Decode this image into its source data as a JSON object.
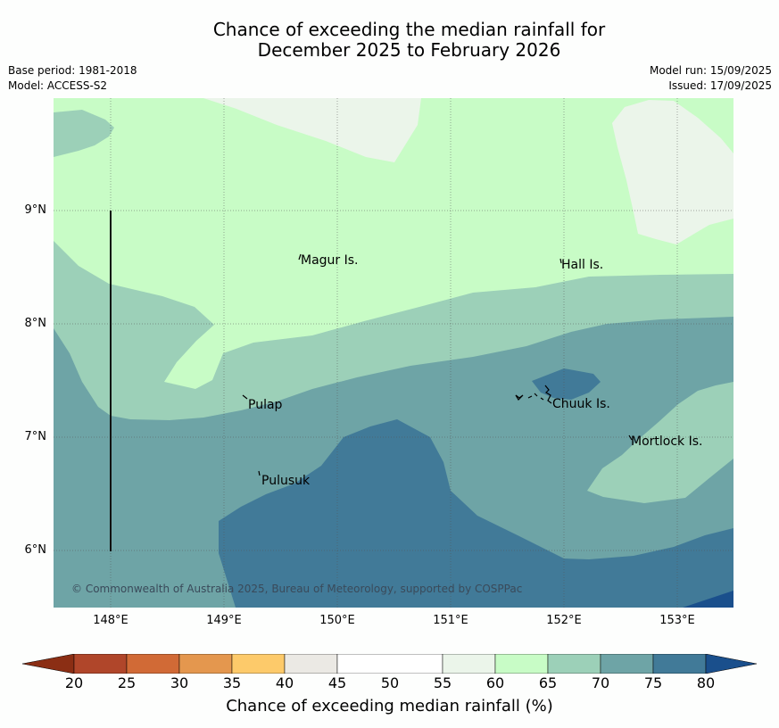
{
  "title_line1": "Chance of exceeding the median rainfall for",
  "title_line2": "December 2025 to February 2026",
  "base_period": "Base period: 1981-2018",
  "model": "Model: ACCESS-S2",
  "model_run": "Model run: 15/09/2025",
  "issued": "Issued: 17/09/2025",
  "places": [
    "Magur Is.",
    "Hall Is.",
    "Pulap",
    "Chuuk Is.",
    "Mortlock Is.",
    "Pulusuk"
  ],
  "copyright": "© Commonwealth of Australia 2025, Bureau of Meteorology, supported by COSPPac",
  "lat_labels": [
    "9°N",
    "8°N",
    "7°N",
    "6°N"
  ],
  "lon_labels": [
    "148°E",
    "149°E",
    "150°E",
    "151°E",
    "152°E",
    "153°E"
  ],
  "colorbar": {
    "ticks": [
      "20",
      "25",
      "30",
      "35",
      "40",
      "45",
      "50",
      "55",
      "60",
      "65",
      "70",
      "75",
      "80"
    ],
    "colors": {
      "below20": "#8b2e14",
      "20-25": "#b0462a",
      "25-30": "#d16a36",
      "30-35": "#e4974e",
      "35-40": "#fdca6a",
      "40-45": "#ebe9e4",
      "45-55": "#ffffff",
      "55-60": "#ebf5ea",
      "60-65": "#c8fcc6",
      "65-70": "#9cd0b8",
      "70-75": "#6ea4a6",
      "75-80": "#417a98",
      "above80": "#1a4f8c"
    },
    "label": "Chance of exceeding median rainfall (%)"
  }
}
